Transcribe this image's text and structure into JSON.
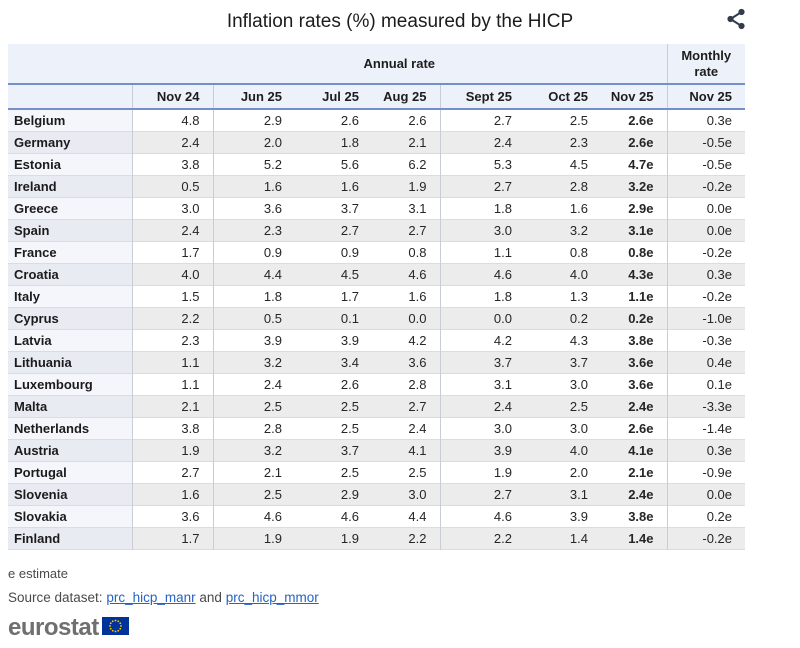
{
  "header": {
    "title": "Inflation rates (%) measured by the HICP",
    "share_icon": "share"
  },
  "table": {
    "annual_group_label": "Annual rate",
    "monthly_group_label": "Monthly rate",
    "month_columns": [
      "Nov 24",
      "Jun 25",
      "Jul 25",
      "Aug 25",
      "Sept 25",
      "Oct 25",
      "Nov 25"
    ],
    "monthly_column": "Nov 25",
    "rows": [
      {
        "country": "Belgium",
        "values": [
          "4.8",
          "2.9",
          "2.6",
          "2.6",
          "2.7",
          "2.5",
          "2.6e"
        ],
        "monthly": "0.3e"
      },
      {
        "country": "Germany",
        "values": [
          "2.4",
          "2.0",
          "1.8",
          "2.1",
          "2.4",
          "2.3",
          "2.6e"
        ],
        "monthly": "-0.5e"
      },
      {
        "country": "Estonia",
        "values": [
          "3.8",
          "5.2",
          "5.6",
          "6.2",
          "5.3",
          "4.5",
          "4.7e"
        ],
        "monthly": "-0.5e"
      },
      {
        "country": "Ireland",
        "values": [
          "0.5",
          "1.6",
          "1.6",
          "1.9",
          "2.7",
          "2.8",
          "3.2e"
        ],
        "monthly": "-0.2e"
      },
      {
        "country": "Greece",
        "values": [
          "3.0",
          "3.6",
          "3.7",
          "3.1",
          "1.8",
          "1.6",
          "2.9e"
        ],
        "monthly": "0.0e"
      },
      {
        "country": "Spain",
        "values": [
          "2.4",
          "2.3",
          "2.7",
          "2.7",
          "3.0",
          "3.2",
          "3.1e"
        ],
        "monthly": "0.0e"
      },
      {
        "country": "France",
        "values": [
          "1.7",
          "0.9",
          "0.9",
          "0.8",
          "1.1",
          "0.8",
          "0.8e"
        ],
        "monthly": "-0.2e"
      },
      {
        "country": "Croatia",
        "values": [
          "4.0",
          "4.4",
          "4.5",
          "4.6",
          "4.6",
          "4.0",
          "4.3e"
        ],
        "monthly": "0.3e"
      },
      {
        "country": "Italy",
        "values": [
          "1.5",
          "1.8",
          "1.7",
          "1.6",
          "1.8",
          "1.3",
          "1.1e"
        ],
        "monthly": "-0.2e"
      },
      {
        "country": "Cyprus",
        "values": [
          "2.2",
          "0.5",
          "0.1",
          "0.0",
          "0.0",
          "0.2",
          "0.2e"
        ],
        "monthly": "-1.0e"
      },
      {
        "country": "Latvia",
        "values": [
          "2.3",
          "3.9",
          "3.9",
          "4.2",
          "4.2",
          "4.3",
          "3.8e"
        ],
        "monthly": "-0.3e"
      },
      {
        "country": "Lithuania",
        "values": [
          "1.1",
          "3.2",
          "3.4",
          "3.6",
          "3.7",
          "3.7",
          "3.6e"
        ],
        "monthly": "0.4e"
      },
      {
        "country": "Luxembourg",
        "values": [
          "1.1",
          "2.4",
          "2.6",
          "2.8",
          "3.1",
          "3.0",
          "3.6e"
        ],
        "monthly": "0.1e"
      },
      {
        "country": "Malta",
        "values": [
          "2.1",
          "2.5",
          "2.5",
          "2.7",
          "2.4",
          "2.5",
          "2.4e"
        ],
        "monthly": "-3.3e"
      },
      {
        "country": "Netherlands",
        "values": [
          "3.8",
          "2.8",
          "2.5",
          "2.4",
          "3.0",
          "3.0",
          "2.6e"
        ],
        "monthly": "-1.4e"
      },
      {
        "country": "Austria",
        "values": [
          "1.9",
          "3.2",
          "3.7",
          "4.1",
          "3.9",
          "4.0",
          "4.1e"
        ],
        "monthly": "0.3e"
      },
      {
        "country": "Portugal",
        "values": [
          "2.7",
          "2.1",
          "2.5",
          "2.5",
          "1.9",
          "2.0",
          "2.1e"
        ],
        "monthly": "-0.9e"
      },
      {
        "country": "Slovenia",
        "values": [
          "1.6",
          "2.5",
          "2.9",
          "3.0",
          "2.7",
          "3.1",
          "2.4e"
        ],
        "monthly": "0.0e"
      },
      {
        "country": "Slovakia",
        "values": [
          "3.6",
          "4.6",
          "4.6",
          "4.4",
          "4.6",
          "3.9",
          "3.8e"
        ],
        "monthly": "0.2e"
      },
      {
        "country": "Finland",
        "values": [
          "1.7",
          "1.9",
          "1.9",
          "2.2",
          "2.2",
          "1.4",
          "1.4e"
        ],
        "monthly": "-0.2e"
      }
    ]
  },
  "footer": {
    "estimate_note": "e estimate",
    "source_prefix": "Source dataset:",
    "link1": "prc_hicp_manr",
    "conjunction": "and",
    "link2": "prc_hicp_mmor",
    "logo_text": "eurostat"
  },
  "colors": {
    "header_bg": "#edf1f9",
    "accent_border": "#7390c9",
    "row_alt_bg": "#ececec",
    "country_col_bg": "#f4f6fb",
    "link": "#2663c4",
    "flag_blue": "#003399",
    "flag_stars": "#ffcc00",
    "logo_gray": "#6f6f6f"
  }
}
